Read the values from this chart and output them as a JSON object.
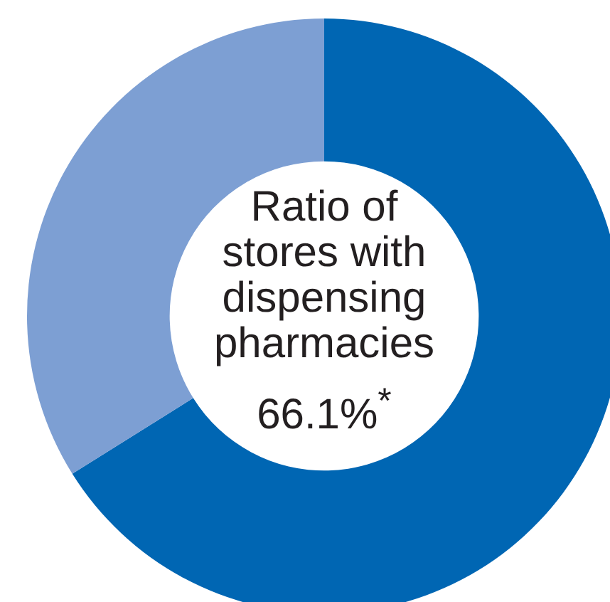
{
  "chart_data": {
    "type": "donut",
    "title": "Ratio of stores with dispensing pharmacies",
    "categories": [
      null,
      null
    ],
    "values": [
      66.1,
      33.9
    ],
    "colors": [
      "#0066b3",
      "#7d9fd3"
    ],
    "value_labels": [
      "66.1%$^{*}$",
      null
    ]
  }
}
